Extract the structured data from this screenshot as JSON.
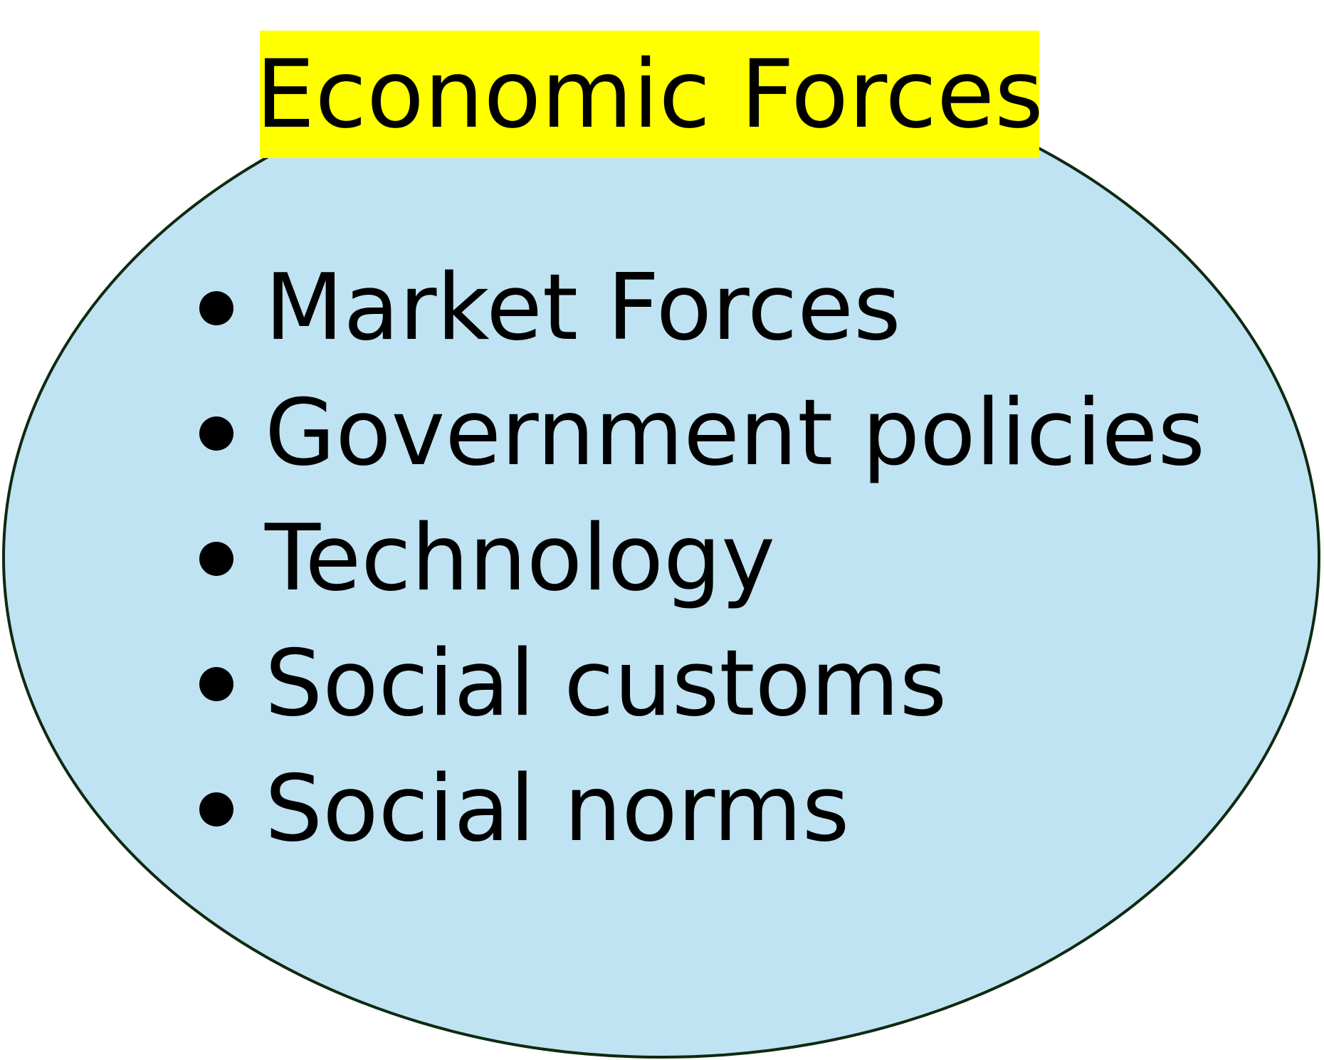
{
  "diagram": {
    "title": "Economic Forces",
    "colors": {
      "title_background": "#ffff00",
      "ellipse_fill": "#c0e3f3",
      "ellipse_stroke": "#0e2a10",
      "text": "#000000"
    },
    "items": [
      {
        "label": "Market Forces"
      },
      {
        "label": "Government policies"
      },
      {
        "label": "Technology"
      },
      {
        "label": "Social customs"
      },
      {
        "label": "Social norms"
      }
    ]
  }
}
